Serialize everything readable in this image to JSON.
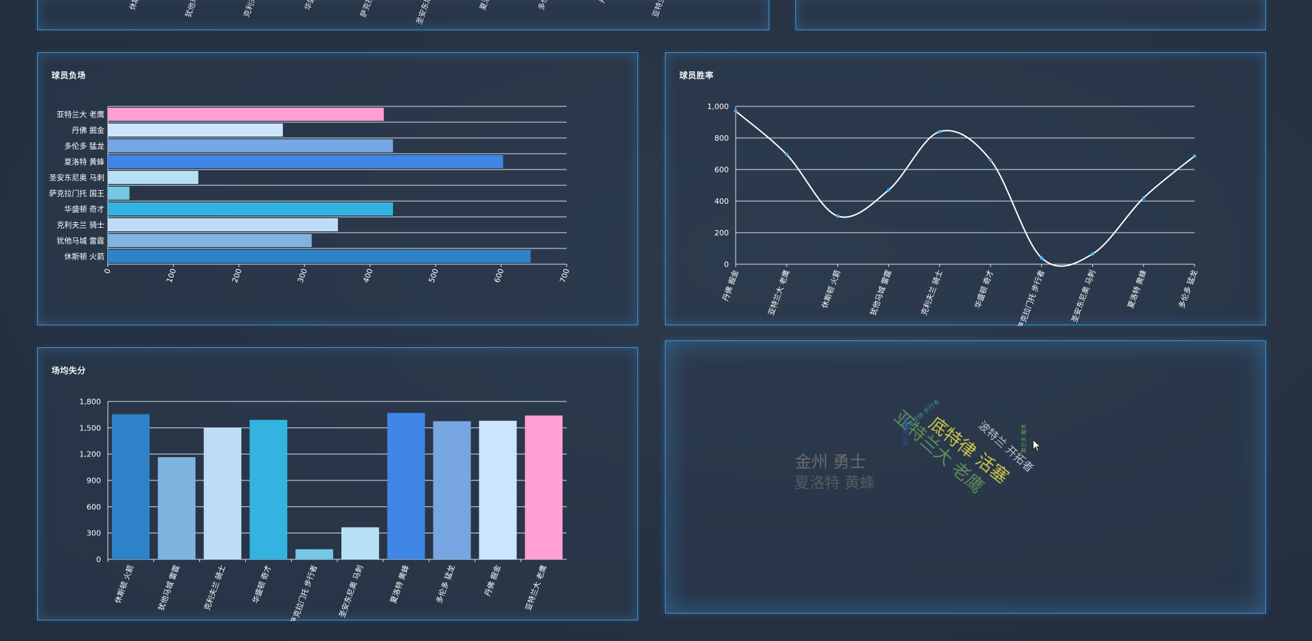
{
  "top_strip": {
    "left_visible_labels": [
      "休斯",
      "犹他马",
      "克利夫",
      "华盛",
      "萨克拉",
      "圣安东尼",
      "夏洛",
      "多伦",
      "丹",
      "亚特兰"
    ]
  },
  "panels": {
    "losses": {
      "title": "球员负场"
    },
    "win_rate": {
      "title": "球员胜率"
    },
    "points_allowed": {
      "title": "场均失分"
    },
    "wordcloud": {
      "title": ""
    }
  },
  "chart_data": [
    {
      "id": "losses",
      "type": "bar",
      "orientation": "horizontal",
      "categories": [
        "亚特兰大 老鹰",
        "丹佛 掘金",
        "多伦多 猛龙",
        "夏洛特 黄蜂",
        "圣安东尼奥 马刺",
        "萨克拉门托 国王",
        "华盛顿 奇才",
        "克利夫兰 骑士",
        "犹他马城 雷霆",
        "休斯顿 火箭"
      ],
      "values": [
        421,
        267,
        435,
        603,
        138,
        33,
        435,
        351,
        311,
        645
      ],
      "colors": [
        "#ff9fd4",
        "#cce5ff",
        "#78a6e2",
        "#3f86e6",
        "#b6e1f4",
        "#74c8e4",
        "#33b4e0",
        "#bfdcf7",
        "#7fb4e0",
        "#2d82c8"
      ],
      "xlim": [
        0,
        700
      ],
      "xticks": [
        0,
        100,
        200,
        300,
        400,
        500,
        600,
        700
      ],
      "grid": true
    },
    {
      "id": "win_rate",
      "type": "line",
      "smooth": true,
      "categories": [
        "丹佛 掘金",
        "亚特兰大 老鹰",
        "休斯顿 火箭",
        "犹他马城 雷霆",
        "克利夫兰 骑士",
        "华盛顿 奇才",
        "萨克拉门托 步行者",
        "圣安东尼奥 马刺",
        "夏洛特 黄蜂",
        "多伦多 猛龙"
      ],
      "values": [
        970,
        695,
        305,
        470,
        840,
        660,
        40,
        65,
        420,
        685
      ],
      "ylim": [
        0,
        1000
      ],
      "yticks": [
        "0",
        "200",
        "400",
        "600",
        "800",
        "1,000"
      ],
      "line_color": "#ffffff",
      "point_color": "#4ab0f0",
      "grid": true
    },
    {
      "id": "points_allowed",
      "type": "bar",
      "orientation": "vertical",
      "categories": [
        "休斯顿 火箭",
        "犹他马城 雷霆",
        "克利夫兰 骑士",
        "华盛顿 奇才",
        "萨克拉门托 步行者",
        "圣安东尼奥 马刺",
        "夏洛特 黄蜂",
        "多伦多 猛龙",
        "丹佛 掘金",
        "亚特兰大 老鹰"
      ],
      "values": [
        1655,
        1165,
        1500,
        1590,
        115,
        365,
        1670,
        1575,
        1580,
        1640
      ],
      "colors": [
        "#2d82c8",
        "#7fb4e0",
        "#bfdcf7",
        "#33b4e0",
        "#74c8e4",
        "#b6e1f4",
        "#3f86e6",
        "#78a6e2",
        "#cce5ff",
        "#ff9fd4"
      ],
      "ylim": [
        0,
        1800
      ],
      "yticks": [
        "0",
        "300",
        "600",
        "900",
        "1,200",
        "1,500",
        "1,800"
      ],
      "grid": true
    },
    {
      "id": "wordcloud",
      "type": "wordcloud",
      "words": [
        {
          "text": "底特律 活塞",
          "color": "#c9c24a"
        },
        {
          "text": "亚特兰大 老鹰",
          "color": "#5e8a5a"
        },
        {
          "text": "金州 勇士",
          "color": "#6b6b6b"
        },
        {
          "text": "夏洛特 黄蜂",
          "color": "#555a60"
        },
        {
          "text": "波特兰 开拓者",
          "color": "#b9c2cc"
        },
        {
          "text": "印第安纳 步行者",
          "color": "#3a8d86"
        },
        {
          "text": "纽约 尼克斯",
          "color": "#3a4fb0"
        },
        {
          "text": "奥兰多 魔术",
          "color": "#5aa84a"
        }
      ]
    }
  ]
}
